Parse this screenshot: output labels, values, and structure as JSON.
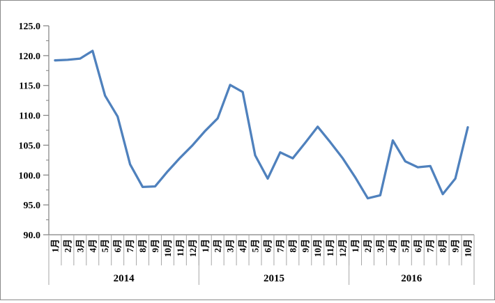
{
  "chart_data": {
    "type": "line",
    "title": "",
    "legend": "none",
    "grid": "off",
    "ylim": [
      90,
      125
    ],
    "y_axis": {
      "tick_step": 5,
      "minor_tick_step": 2.5,
      "tick_labels": [
        "90.0",
        "95.0",
        "100.0",
        "105.0",
        "110.0",
        "115.0",
        "120.0",
        "125.0"
      ]
    },
    "x_axis": {
      "year_groups": [
        {
          "year": "2014",
          "months": [
            "1月",
            "2月",
            "3月",
            "4月",
            "5月",
            "6月",
            "7月",
            "8月",
            "9月",
            "10月",
            "11月",
            "12月"
          ],
          "values": [
            119.2,
            119.3,
            119.5,
            120.8,
            113.3,
            109.8,
            101.8,
            98.0,
            98.1,
            100.6,
            102.9,
            105.0
          ]
        },
        {
          "year": "2015",
          "months": [
            "1月",
            "2月",
            "3月",
            "4月",
            "5月",
            "6月",
            "7月",
            "8月",
            "9月",
            "10月",
            "11月",
            "12月"
          ],
          "values": [
            107.4,
            109.5,
            115.1,
            113.9,
            103.3,
            99.4,
            103.8,
            102.8,
            105.4,
            108.1,
            105.5,
            102.8
          ]
        },
        {
          "year": "2016",
          "months": [
            "1月",
            "2月",
            "3月",
            "4月",
            "5月",
            "6月",
            "7月",
            "8月",
            "9月",
            "10月"
          ],
          "values": [
            99.6,
            96.1,
            96.6,
            105.8,
            102.3,
            101.3,
            101.5,
            96.8,
            99.4,
            108.0
          ]
        }
      ]
    },
    "series": [
      {
        "name": "monthly-index",
        "color": "#4F81BD"
      }
    ],
    "colors": {
      "line": "#4a7ab5",
      "axis": "#808080",
      "cell_border": "#a6a6a6",
      "text": "#000000",
      "frame_border": "#8a8a8a",
      "background": "#ffffff"
    }
  }
}
